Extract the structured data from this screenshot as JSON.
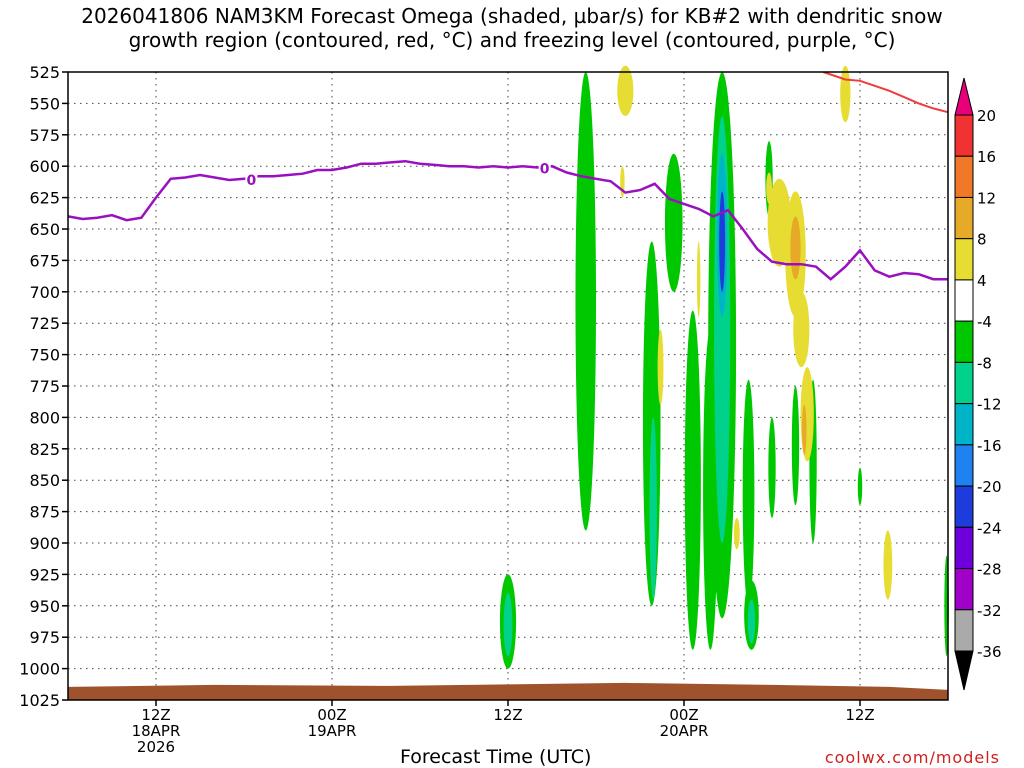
{
  "title_line1": "2026041806 NAM3KM Forecast Omega (shaded, µbar/s) for KB#2 with dendritic snow",
  "title_line2": "growth region (contoured, red, °C) and freezing level (contoured, purple, °C)",
  "xaxis_label": "Forecast Time (UTC)",
  "credit": "coolwx.com/models",
  "chart_data": {
    "type": "heatmap",
    "title": "2026041806 NAM3KM Forecast Omega (shaded, µbar/s) for KB#2 with dendritic snow growth region (contoured, red, °C) and freezing level (contoured, purple, °C)",
    "xlabel": "Forecast Time (UTC)",
    "ylabel": "",
    "x_range_hours": [
      0,
      60
    ],
    "x_ticks": [
      {
        "hour": 6,
        "label": [
          "12Z",
          "18APR",
          "2026"
        ]
      },
      {
        "hour": 18,
        "label": [
          "00Z",
          "19APR"
        ]
      },
      {
        "hour": 30,
        "label": [
          "12Z"
        ]
      },
      {
        "hour": 42,
        "label": [
          "00Z",
          "20APR"
        ]
      },
      {
        "hour": 54,
        "label": [
          "12Z"
        ]
      }
    ],
    "y_range_hPa": [
      1025,
      525
    ],
    "y_ticks": [
      525,
      550,
      575,
      600,
      625,
      650,
      675,
      700,
      725,
      750,
      775,
      800,
      825,
      850,
      875,
      900,
      925,
      950,
      975,
      1000,
      1025
    ],
    "grid": true,
    "colorbar": {
      "levels": [
        20,
        16,
        12,
        8,
        4,
        -4,
        -8,
        -12,
        -16,
        -20,
        -24,
        -28,
        -32,
        -36
      ],
      "colors": [
        "#e8007a",
        "#f03232",
        "#f07828",
        "#e6aa28",
        "#e6dc32",
        "#ffffff",
        "#00c800",
        "#00d28c",
        "#00b4c8",
        "#1e82f0",
        "#1e3cdc",
        "#6e00dc",
        "#a000c8",
        "#aaaaaa",
        "#000000"
      ]
    },
    "freezing_level": {
      "color": "#9a10c0",
      "label": "0",
      "points": [
        [
          0,
          640
        ],
        [
          1,
          642
        ],
        [
          2,
          641
        ],
        [
          3,
          639
        ],
        [
          4,
          643
        ],
        [
          5,
          641
        ],
        [
          6,
          625
        ],
        [
          7,
          610
        ],
        [
          8,
          609
        ],
        [
          9,
          607
        ],
        [
          10,
          609
        ],
        [
          11,
          611
        ],
        [
          12,
          610
        ],
        [
          13,
          608
        ],
        [
          14,
          608
        ],
        [
          15,
          607
        ],
        [
          16,
          606
        ],
        [
          17,
          603
        ],
        [
          18,
          603
        ],
        [
          19,
          601
        ],
        [
          20,
          598
        ],
        [
          21,
          598
        ],
        [
          22,
          597
        ],
        [
          23,
          596
        ],
        [
          24,
          598
        ],
        [
          25,
          599
        ],
        [
          26,
          600
        ],
        [
          27,
          600
        ],
        [
          28,
          601
        ],
        [
          29,
          600
        ],
        [
          30,
          601
        ],
        [
          31,
          600
        ],
        [
          32,
          601
        ],
        [
          33,
          600
        ],
        [
          34,
          605
        ],
        [
          35,
          608
        ],
        [
          36,
          610
        ],
        [
          37,
          612
        ],
        [
          38,
          621
        ],
        [
          39,
          619
        ],
        [
          40,
          614
        ],
        [
          41,
          626
        ],
        [
          42,
          630
        ],
        [
          43,
          634
        ],
        [
          44,
          640
        ],
        [
          45,
          635
        ],
        [
          46,
          650
        ],
        [
          47,
          666
        ],
        [
          48,
          676
        ],
        [
          49,
          678
        ],
        [
          50,
          678
        ],
        [
          51,
          680
        ],
        [
          52,
          690
        ],
        [
          53,
          680
        ],
        [
          54,
          667
        ],
        [
          55,
          683
        ],
        [
          56,
          688
        ],
        [
          57,
          685
        ],
        [
          58,
          686
        ],
        [
          59,
          690
        ],
        [
          60,
          690
        ]
      ]
    },
    "dgz_contour": {
      "color": "#f03c3c",
      "points": [
        [
          51.5,
          520
        ],
        [
          53,
          531
        ],
        [
          54,
          532
        ],
        [
          55,
          536
        ],
        [
          56,
          540
        ],
        [
          57,
          545
        ],
        [
          58,
          550
        ],
        [
          59,
          554
        ],
        [
          60,
          557
        ]
      ]
    },
    "omega_regions": [
      {
        "hour": 35.3,
        "p_top": 525,
        "p_bottom": 890,
        "half_width_h": 0.7,
        "value": -6
      },
      {
        "hour": 35.6,
        "p_top": 620,
        "p_bottom": 720,
        "half_width_h": 0.3,
        "value": -6
      },
      {
        "hour": 39.8,
        "p_top": 660,
        "p_bottom": 950,
        "half_width_h": 0.6,
        "value": -6
      },
      {
        "hour": 39.9,
        "p_top": 800,
        "p_bottom": 945,
        "half_width_h": 0.25,
        "value": -10
      },
      {
        "hour": 41.3,
        "p_top": 590,
        "p_bottom": 700,
        "half_width_h": 0.6,
        "value": -6
      },
      {
        "hour": 42.6,
        "p_top": 715,
        "p_bottom": 985,
        "half_width_h": 0.55,
        "value": -6
      },
      {
        "hour": 43.8,
        "p_top": 730,
        "p_bottom": 985,
        "half_width_h": 0.5,
        "value": -6
      },
      {
        "hour": 44.6,
        "p_top": 525,
        "p_bottom": 960,
        "half_width_h": 0.95,
        "value": -6
      },
      {
        "hour": 44.6,
        "p_top": 560,
        "p_bottom": 900,
        "half_width_h": 0.55,
        "value": -10
      },
      {
        "hour": 44.6,
        "p_top": 590,
        "p_bottom": 720,
        "half_width_h": 0.35,
        "value": -14
      },
      {
        "hour": 44.6,
        "p_top": 620,
        "p_bottom": 700,
        "half_width_h": 0.2,
        "value": -22
      },
      {
        "hour": 46.4,
        "p_top": 770,
        "p_bottom": 950,
        "half_width_h": 0.4,
        "value": -6
      },
      {
        "hour": 46.6,
        "p_top": 930,
        "p_bottom": 985,
        "half_width_h": 0.5,
        "value": -6
      },
      {
        "hour": 46.6,
        "p_top": 945,
        "p_bottom": 980,
        "half_width_h": 0.25,
        "value": -10
      },
      {
        "hour": 47.8,
        "p_top": 580,
        "p_bottom": 640,
        "half_width_h": 0.25,
        "value": -6
      },
      {
        "hour": 48.0,
        "p_top": 800,
        "p_bottom": 880,
        "half_width_h": 0.25,
        "value": -6
      },
      {
        "hour": 49.6,
        "p_top": 775,
        "p_bottom": 870,
        "half_width_h": 0.25,
        "value": -6
      },
      {
        "hour": 50.8,
        "p_top": 770,
        "p_bottom": 900,
        "half_width_h": 0.25,
        "value": -6
      },
      {
        "hour": 54.0,
        "p_top": 840,
        "p_bottom": 870,
        "half_width_h": 0.15,
        "value": -6
      },
      {
        "hour": 59.9,
        "p_top": 910,
        "p_bottom": 990,
        "half_width_h": 0.15,
        "value": -6
      },
      {
        "hour": 30.0,
        "p_top": 925,
        "p_bottom": 1000,
        "half_width_h": 0.55,
        "value": -6
      },
      {
        "hour": 30.0,
        "p_top": 940,
        "p_bottom": 990,
        "half_width_h": 0.3,
        "value": -10
      },
      {
        "hour": 38.0,
        "p_top": 520,
        "p_bottom": 560,
        "half_width_h": 0.55,
        "value": 5
      },
      {
        "hour": 37.8,
        "p_top": 600,
        "p_bottom": 625,
        "half_width_h": 0.15,
        "value": 5
      },
      {
        "hour": 40.4,
        "p_top": 730,
        "p_bottom": 790,
        "half_width_h": 0.2,
        "value": 5
      },
      {
        "hour": 43.0,
        "p_top": 660,
        "p_bottom": 720,
        "half_width_h": 0.12,
        "value": 5
      },
      {
        "hour": 45.6,
        "p_top": 880,
        "p_bottom": 905,
        "half_width_h": 0.2,
        "value": 5
      },
      {
        "hour": 47.8,
        "p_top": 605,
        "p_bottom": 630,
        "half_width_h": 0.2,
        "value": 5
      },
      {
        "hour": 48.5,
        "p_top": 610,
        "p_bottom": 680,
        "half_width_h": 0.8,
        "value": 5
      },
      {
        "hour": 49.6,
        "p_top": 620,
        "p_bottom": 720,
        "half_width_h": 0.7,
        "value": 5
      },
      {
        "hour": 49.6,
        "p_top": 640,
        "p_bottom": 690,
        "half_width_h": 0.35,
        "value": 9
      },
      {
        "hour": 50.0,
        "p_top": 700,
        "p_bottom": 760,
        "half_width_h": 0.55,
        "value": 5
      },
      {
        "hour": 50.4,
        "p_top": 760,
        "p_bottom": 835,
        "half_width_h": 0.45,
        "value": 5
      },
      {
        "hour": 50.2,
        "p_top": 790,
        "p_bottom": 830,
        "half_width_h": 0.15,
        "value": 9
      },
      {
        "hour": 53.0,
        "p_top": 520,
        "p_bottom": 565,
        "half_width_h": 0.35,
        "value": 5
      },
      {
        "hour": 55.9,
        "p_top": 890,
        "p_bottom": 945,
        "half_width_h": 0.3,
        "value": 5
      }
    ],
    "terrain": {
      "color": "#a0522d",
      "surface_p": 1013
    }
  }
}
